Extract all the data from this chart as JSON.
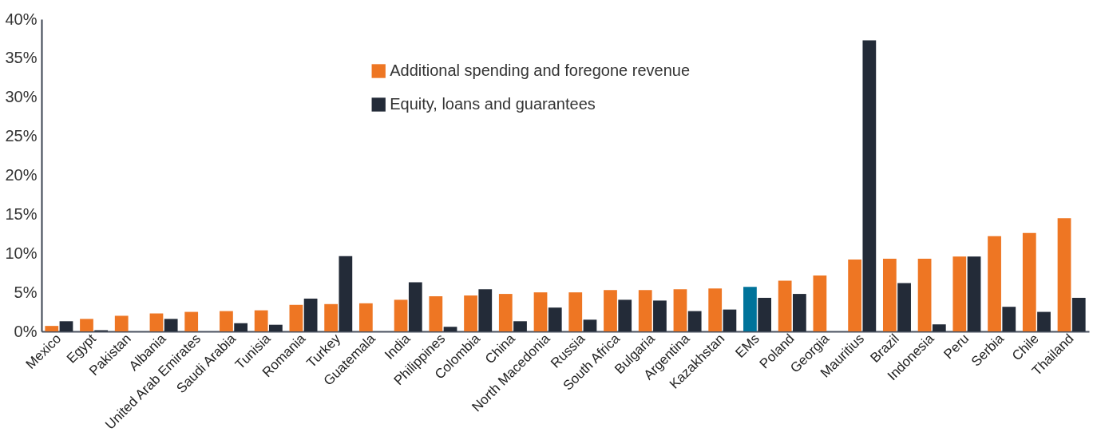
{
  "chart_data": {
    "type": "bar",
    "categories": [
      "Mexico",
      "Egypt",
      "Pakistan",
      "Albania",
      "United Arab Emirates",
      "Saudi Arabia",
      "Tunisia",
      "Romania",
      "Turkey",
      "Guatemala",
      "India",
      "Philippines",
      "Colombia",
      "China",
      "North Macedonia",
      "Russia",
      "South Africa",
      "Bulgaria",
      "Argentina",
      "Kazakhstan",
      "EMs",
      "Poland",
      "Georgia",
      "Mauritius",
      "Brazil",
      "Indonesia",
      "Peru",
      "Serbia",
      "Chile",
      "Thailand"
    ],
    "series": [
      {
        "name": "Additional spending and foregone revenue",
        "color": "#ee7623",
        "colors": [
          "#ee7623",
          "#ee7623",
          "#ee7623",
          "#ee7623",
          "#ee7623",
          "#ee7623",
          "#ee7623",
          "#ee7623",
          "#ee7623",
          "#ee7623",
          "#ee7623",
          "#ee7623",
          "#ee7623",
          "#ee7623",
          "#ee7623",
          "#ee7623",
          "#ee7623",
          "#ee7623",
          "#ee7623",
          "#ee7623",
          "#00739a",
          "#ee7623",
          "#ee7623",
          "#ee7623",
          "#ee7623",
          "#ee7623",
          "#ee7623",
          "#ee7623",
          "#ee7623",
          "#ee7623"
        ],
        "values": [
          0.7,
          1.6,
          2.0,
          2.3,
          2.5,
          2.6,
          2.7,
          3.4,
          3.5,
          3.6,
          4.05,
          4.5,
          4.6,
          4.8,
          5.0,
          5.0,
          5.3,
          5.3,
          5.4,
          5.5,
          5.7,
          6.5,
          7.15,
          9.2,
          9.3,
          9.3,
          9.6,
          12.2,
          12.6,
          14.5
        ]
      },
      {
        "name": "Equity, loans and guarantees",
        "color": "#232b38",
        "values": [
          1.3,
          0.15,
          null,
          1.6,
          null,
          1.05,
          0.85,
          4.2,
          9.65,
          null,
          6.3,
          0.6,
          5.4,
          1.3,
          3.05,
          1.5,
          4.05,
          3.95,
          2.6,
          2.8,
          4.3,
          4.8,
          null,
          37.3,
          6.2,
          0.9,
          9.6,
          3.15,
          2.5,
          4.3
        ]
      }
    ],
    "ylim": [
      0,
      40
    ],
    "yticks": [
      {
        "value": 0,
        "label": "0%"
      },
      {
        "value": 5,
        "label": "5%"
      },
      {
        "value": 10,
        "label": "10%"
      },
      {
        "value": 15,
        "label": "15%"
      },
      {
        "value": 20,
        "label": "20%"
      },
      {
        "value": 25,
        "label": "25%"
      },
      {
        "value": 30,
        "label": "30%"
      },
      {
        "value": 35,
        "label": "35%"
      },
      {
        "value": 40,
        "label": "40%"
      }
    ],
    "grid": false,
    "legend": "top"
  }
}
